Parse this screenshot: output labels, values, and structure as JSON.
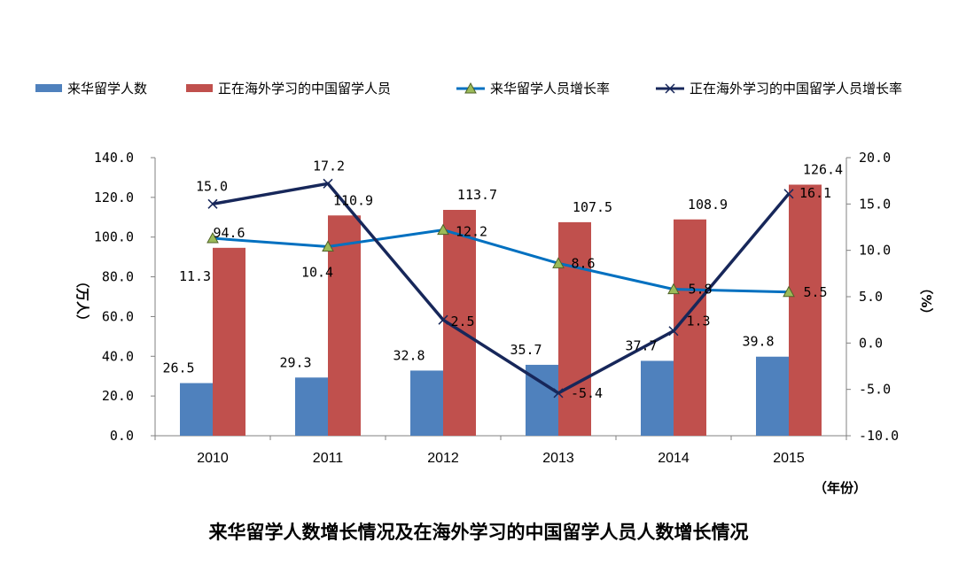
{
  "chart_data": {
    "type": "bar",
    "title": "来华留学人数增长情况及在海外学习的中国留学人员人数增长情况",
    "categories": [
      "2010",
      "2011",
      "2012",
      "2013",
      "2014",
      "2015"
    ],
    "xlabel": "（年份）",
    "ylabel_left": "（万人）",
    "ylabel_right": "（%）",
    "ylim_left": [
      0,
      140
    ],
    "ylim_right": [
      -10,
      20
    ],
    "yticks_left": [
      "0.0",
      "20.0",
      "40.0",
      "60.0",
      "80.0",
      "100.0",
      "120.0",
      "140.0"
    ],
    "yticks_right": [
      "-10.0",
      "-5.0",
      "0.0",
      "5.0",
      "10.0",
      "15.0",
      "20.0"
    ],
    "legend_position": "top",
    "grid": false,
    "series": [
      {
        "name": "来华留学人数",
        "kind": "bar",
        "axis": "left",
        "color": "#4F81BD",
        "values": [
          26.5,
          29.3,
          32.8,
          35.7,
          37.7,
          39.8
        ],
        "labels": [
          "26.5",
          "29.3",
          "32.8",
          "35.7",
          "37.7",
          "39.8"
        ]
      },
      {
        "name": "正在海外学习的中国留学人员",
        "kind": "bar",
        "axis": "left",
        "color": "#C0504D",
        "values": [
          94.6,
          110.9,
          113.7,
          107.5,
          108.9,
          126.4
        ],
        "labels": [
          "94.6",
          "110.9",
          "113.7",
          "107.5",
          "108.9",
          "126.4"
        ]
      },
      {
        "name": "来华留学人员增长率",
        "kind": "line",
        "axis": "right",
        "color": "#0070C0",
        "marker": "triangle",
        "values": [
          11.3,
          10.4,
          12.2,
          8.6,
          5.8,
          5.5
        ],
        "labels": [
          "11.3",
          "10.4",
          "12.2",
          "8.6",
          "5.8",
          "5.5"
        ]
      },
      {
        "name": "正在海外学习的中国留学人员增长率",
        "kind": "line",
        "axis": "right",
        "color": "#17275A",
        "marker": "x",
        "values": [
          15.0,
          17.2,
          2.5,
          -5.4,
          1.3,
          16.1
        ],
        "labels": [
          "15.0",
          "17.2",
          "2.5",
          "-5.4",
          "1.3",
          "16.1"
        ]
      }
    ]
  }
}
